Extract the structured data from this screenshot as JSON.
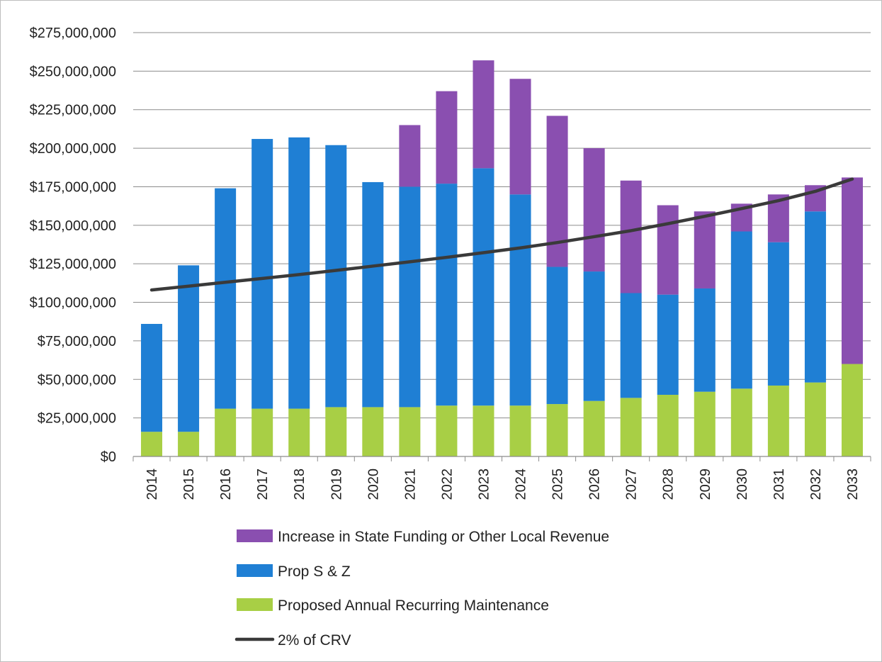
{
  "chart_data": {
    "type": "bar",
    "stacked": true,
    "categories": [
      "2014",
      "2015",
      "2016",
      "2017",
      "2018",
      "2019",
      "2020",
      "2021",
      "2022",
      "2023",
      "2024",
      "2025",
      "2026",
      "2027",
      "2028",
      "2029",
      "2030",
      "2031",
      "2032",
      "2033"
    ],
    "series": [
      {
        "name": "Proposed Annual Recurring Maintenance",
        "color": "#a8cf45",
        "values": [
          16000000,
          16000000,
          31000000,
          31000000,
          31000000,
          32000000,
          32000000,
          32000000,
          33000000,
          33000000,
          33000000,
          34000000,
          36000000,
          38000000,
          40000000,
          42000000,
          44000000,
          46000000,
          48000000,
          60000000
        ]
      },
      {
        "name": "Prop S & Z",
        "color": "#1f7fd4",
        "values": [
          70000000,
          108000000,
          143000000,
          175000000,
          176000000,
          170000000,
          146000000,
          143000000,
          144000000,
          154000000,
          137000000,
          89000000,
          84000000,
          68000000,
          65000000,
          67000000,
          102000000,
          93000000,
          111000000,
          0
        ]
      },
      {
        "name": "Increase in State Funding or Other Local Revenue",
        "color": "#8a4fb0",
        "values": [
          0,
          0,
          0,
          0,
          0,
          0,
          0,
          40000000,
          60000000,
          70000000,
          75000000,
          98000000,
          80000000,
          73000000,
          58000000,
          50000000,
          18000000,
          31000000,
          17000000,
          121000000
        ]
      }
    ],
    "line": {
      "name": "2% of CRV",
      "color": "#3a3a3a",
      "values": [
        108000000,
        110500000,
        113000000,
        115500000,
        118000000,
        120700000,
        123500000,
        126300000,
        129200000,
        132200000,
        135300000,
        138800000,
        142600000,
        146500000,
        151000000,
        155800000,
        160800000,
        166000000,
        172000000,
        180000000
      ]
    },
    "ylim": [
      0,
      275000000
    ],
    "yticks": [
      0,
      25000000,
      50000000,
      75000000,
      100000000,
      125000000,
      150000000,
      175000000,
      200000000,
      225000000,
      250000000,
      275000000
    ],
    "ytick_labels": [
      "$0",
      "$25,000,000",
      "$50,000,000",
      "$75,000,000",
      "$100,000,000",
      "$125,000,000",
      "$150,000,000",
      "$175,000,000",
      "$200,000,000",
      "$225,000,000",
      "$250,000,000",
      "$275,000,000"
    ],
    "title": "",
    "xlabel": "",
    "ylabel": "",
    "grid": true,
    "legend_position": "bottom",
    "legend_order": [
      "Increase in State Funding or Other Local Revenue",
      "Prop S & Z",
      "Proposed Annual Recurring Maintenance",
      "2% of CRV"
    ]
  }
}
